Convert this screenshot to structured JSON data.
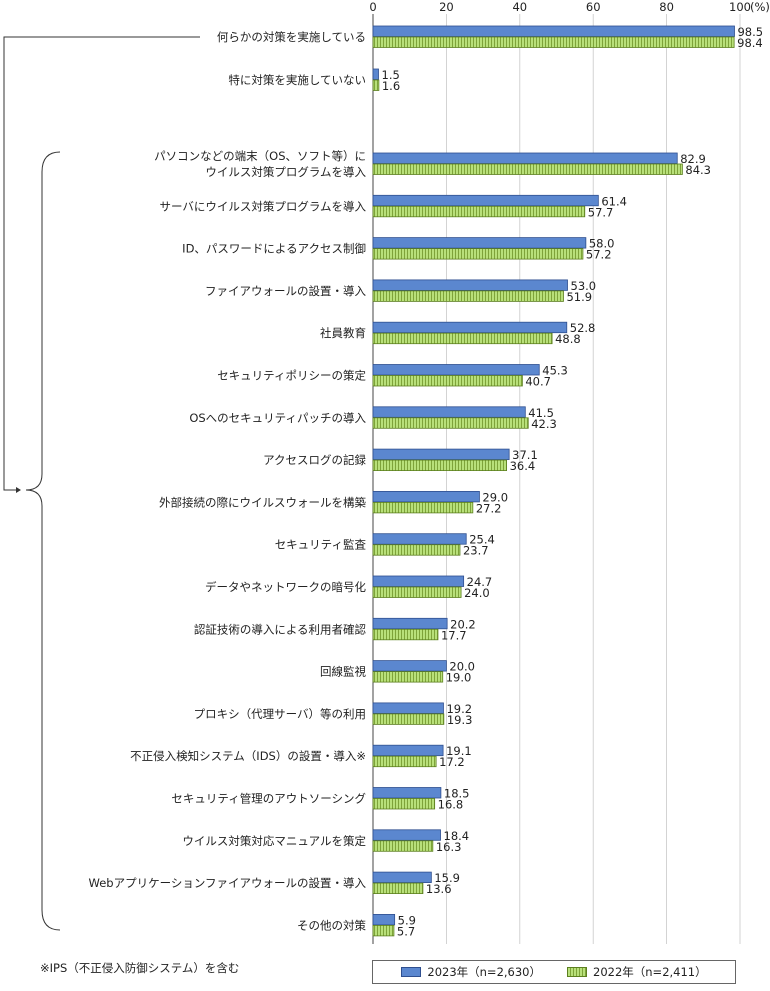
{
  "chart_data": {
    "type": "bar",
    "orientation": "horizontal",
    "unit_label": "(%)",
    "xlim": [
      0,
      100
    ],
    "ticks": [
      "0",
      "20",
      "40",
      "60",
      "80",
      "100"
    ],
    "categories": [
      "何らかの対策を実施している",
      "特に対策を実施していない",
      "パソコンなどの端末（OS、ソフト等）に\nウイルス対策プログラムを導入",
      "サーバにウイルス対策プログラムを導入",
      "ID、パスワードによるアクセス制御",
      "ファイアウォールの設置・導入",
      "社員教育",
      "セキュリティポリシーの策定",
      "OSへのセキュリティパッチの導入",
      "アクセスログの記録",
      "外部接続の際にウイルスウォールを構築",
      "セキュリティ監査",
      "データやネットワークの暗号化",
      "認証技術の導入による利用者確認",
      "回線監視",
      "プロキシ（代理サーバ）等の利用",
      "不正侵入検知システム（IDS）の設置・導入※",
      "セキュリティ管理のアウトソーシング",
      "ウイルス対策対応マニュアルを策定",
      "Webアプリケーションファイアウォールの設置・導入",
      "その他の対策"
    ],
    "series": [
      {
        "name": "2023年（n=2,630）",
        "color": "#5b87cf",
        "values": [
          98.5,
          1.5,
          82.9,
          61.4,
          58.0,
          53.0,
          52.8,
          45.3,
          41.5,
          37.1,
          29.0,
          25.4,
          24.7,
          20.2,
          20.0,
          19.2,
          19.1,
          18.5,
          18.4,
          15.9,
          5.9
        ],
        "labels": [
          "98.5",
          "1.5",
          "82.9",
          "61.4",
          "58.0",
          "53.0",
          "52.8",
          "45.3",
          "41.5",
          "37.1",
          "29.0",
          "25.4",
          "24.7",
          "20.2",
          "20.0",
          "19.2",
          "19.1",
          "18.5",
          "18.4",
          "15.9",
          "5.9"
        ]
      },
      {
        "name": "2022年（n=2,411）",
        "color": "#b8e07a",
        "values": [
          98.4,
          1.6,
          84.3,
          57.7,
          57.2,
          51.9,
          48.8,
          40.7,
          42.3,
          36.4,
          27.2,
          23.7,
          24.0,
          17.7,
          19.0,
          19.3,
          17.2,
          16.8,
          16.3,
          13.6,
          5.7
        ],
        "labels": [
          "98.4",
          "1.6",
          "84.3",
          "57.7",
          "57.2",
          "51.9",
          "48.8",
          "40.7",
          "42.3",
          "36.4",
          "27.2",
          "23.7",
          "24.0",
          "17.7",
          "19.0",
          "19.3",
          "17.2",
          "16.8",
          "16.3",
          "13.6",
          "5.7"
        ]
      }
    ],
    "legend_position": "bottom-right",
    "grid": true
  },
  "footnote": "※IPS（不正侵入防御システム）を含む"
}
